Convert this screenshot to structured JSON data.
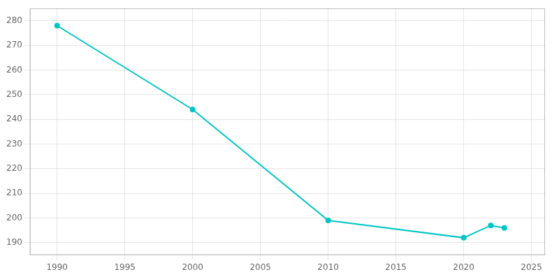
{
  "chart_data": {
    "type": "line",
    "x": [
      1990,
      2000,
      2010,
      2020,
      2022,
      2023
    ],
    "values": [
      278,
      244,
      199,
      192,
      197,
      196
    ],
    "color": "#00C5C5",
    "marker": "circle",
    "xlim": [
      1988,
      2026
    ],
    "xticks": [
      1990,
      1995,
      2000,
      2005,
      2010,
      2015,
      2020,
      2025
    ],
    "ylim": [
      185,
      285
    ],
    "yticks": [
      190,
      200,
      210,
      220,
      230,
      240,
      250,
      260,
      270,
      280
    ],
    "grid": true
  }
}
